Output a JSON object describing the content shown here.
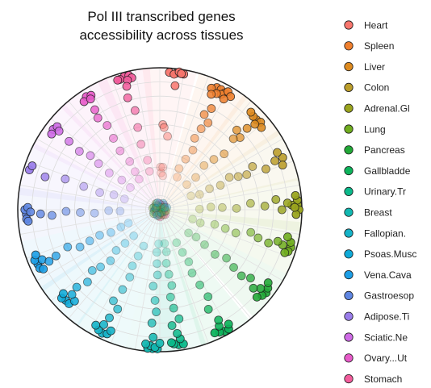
{
  "chart_data": {
    "type": "scatter",
    "subtype": "radial",
    "title_lines": [
      "Pol III transcribed genes",
      "accessibility across tissues"
    ],
    "radial_range": [
      0,
      1
    ],
    "grid": true,
    "legend_position": "right",
    "series": [
      {
        "name": "Heart",
        "color": "#F8766D",
        "angle_deg": 4,
        "points": [
          [
            0.97,
            0
          ],
          [
            0.97,
            3
          ],
          [
            0.97,
            6
          ],
          [
            0.96,
            2
          ],
          [
            0.98,
            4
          ],
          [
            0.97,
            5
          ],
          [
            0.88,
            3
          ],
          [
            0.6,
            -2
          ],
          [
            0.58,
            -1
          ],
          [
            0.52,
            2
          ],
          [
            0.3,
            -3
          ],
          [
            0.3,
            0
          ],
          [
            0.26,
            -2
          ],
          [
            0.24,
            1
          ]
        ]
      },
      {
        "name": "Spleen",
        "color": "#EF7F2E",
        "angle_deg": 27,
        "points": [
          [
            0.95,
            -2
          ],
          [
            0.95,
            0
          ],
          [
            0.94,
            2
          ],
          [
            0.93,
            -4
          ],
          [
            0.92,
            1
          ],
          [
            0.96,
            3
          ],
          [
            0.91,
            -1
          ],
          [
            0.94,
            5
          ],
          [
            0.9,
            3
          ],
          [
            0.89,
            -3
          ],
          [
            0.8,
            0
          ],
          [
            0.74,
            -2
          ],
          [
            0.7,
            2
          ],
          [
            0.64,
            0
          ],
          [
            0.56,
            -1
          ],
          [
            0.48,
            2
          ],
          [
            0.4,
            0
          ],
          [
            0.32,
            -2
          ],
          [
            0.26,
            1
          ]
        ]
      },
      {
        "name": "Liver",
        "color": "#DD8A1F",
        "angle_deg": 47,
        "points": [
          [
            0.93,
            0
          ],
          [
            0.94,
            2
          ],
          [
            0.93,
            -2
          ],
          [
            0.92,
            4
          ],
          [
            0.94,
            -4
          ],
          [
            0.9,
            1
          ],
          [
            0.84,
            0
          ],
          [
            0.78,
            -3
          ],
          [
            0.76,
            1
          ],
          [
            0.72,
            -1
          ],
          [
            0.6,
            2
          ],
          [
            0.52,
            0
          ],
          [
            0.44,
            -2
          ],
          [
            0.34,
            1
          ],
          [
            0.26,
            0
          ]
        ]
      },
      {
        "name": "Colon",
        "color": "#BB9D2B",
        "angle_deg": 67,
        "points": [
          [
            0.94,
            0
          ],
          [
            0.92,
            3
          ],
          [
            0.92,
            -3
          ],
          [
            0.88,
            0
          ],
          [
            0.8,
            2
          ],
          [
            0.72,
            -2
          ],
          [
            0.66,
            1
          ],
          [
            0.6,
            0
          ],
          [
            0.54,
            -2
          ],
          [
            0.46,
            1
          ],
          [
            0.38,
            0
          ],
          [
            0.3,
            2
          ],
          [
            0.24,
            -1
          ]
        ]
      },
      {
        "name": "Adrenal.Gl",
        "color": "#9AA41E",
        "angle_deg": 88,
        "points": [
          [
            0.97,
            0
          ],
          [
            0.97,
            -2
          ],
          [
            0.98,
            2
          ],
          [
            0.96,
            4
          ],
          [
            0.96,
            -4
          ],
          [
            0.93,
            0
          ],
          [
            0.95,
            1
          ],
          [
            0.9,
            -1
          ],
          [
            0.86,
            2
          ],
          [
            0.82,
            -3
          ],
          [
            0.74,
            0
          ],
          [
            0.64,
            -2
          ],
          [
            0.54,
            1
          ],
          [
            0.44,
            0
          ],
          [
            0.36,
            -1
          ],
          [
            0.28,
            1
          ]
        ]
      },
      {
        "name": "Lung",
        "color": "#70AD1F",
        "angle_deg": 106,
        "points": [
          [
            0.96,
            0
          ],
          [
            0.95,
            2
          ],
          [
            0.95,
            -2
          ],
          [
            0.93,
            3
          ],
          [
            0.9,
            0
          ],
          [
            0.92,
            -4
          ],
          [
            0.86,
            -1
          ],
          [
            0.8,
            1
          ],
          [
            0.72,
            0
          ],
          [
            0.66,
            -2
          ],
          [
            0.56,
            1
          ],
          [
            0.48,
            0
          ],
          [
            0.4,
            -1
          ],
          [
            0.3,
            2
          ],
          [
            0.24,
            0
          ]
        ]
      },
      {
        "name": "Pancreas",
        "color": "#22A837",
        "angle_deg": 128,
        "points": [
          [
            0.95,
            0
          ],
          [
            0.94,
            2
          ],
          [
            0.94,
            -2
          ],
          [
            0.92,
            4
          ],
          [
            0.92,
            -4
          ],
          [
            0.9,
            0
          ],
          [
            0.86,
            2
          ],
          [
            0.8,
            -1
          ],
          [
            0.74,
            1
          ],
          [
            0.66,
            0
          ],
          [
            0.58,
            -2
          ],
          [
            0.5,
            1
          ],
          [
            0.4,
            0
          ],
          [
            0.32,
            -1
          ],
          [
            0.26,
            1
          ]
        ]
      },
      {
        "name": "Gallbladde",
        "color": "#0DB35B",
        "angle_deg": 152,
        "points": [
          [
            0.97,
            0
          ],
          [
            0.96,
            2
          ],
          [
            0.97,
            -2
          ],
          [
            0.95,
            4
          ],
          [
            0.94,
            -3
          ],
          [
            0.92,
            1
          ],
          [
            0.88,
            0
          ],
          [
            0.78,
            2
          ],
          [
            0.7,
            -1
          ],
          [
            0.6,
            0
          ],
          [
            0.5,
            1
          ],
          [
            0.42,
            -1
          ],
          [
            0.34,
            0
          ],
          [
            0.26,
            1
          ]
        ]
      },
      {
        "name": "Urinary.Tr",
        "color": "#0BB98A",
        "angle_deg": 172,
        "points": [
          [
            0.96,
            0
          ],
          [
            0.95,
            2
          ],
          [
            0.96,
            -2
          ],
          [
            0.94,
            3
          ],
          [
            0.92,
            -1
          ],
          [
            0.88,
            0
          ],
          [
            0.82,
            2
          ],
          [
            0.78,
            -2
          ],
          [
            0.7,
            0
          ],
          [
            0.62,
            1
          ],
          [
            0.54,
            -1
          ],
          [
            0.46,
            0
          ],
          [
            0.38,
            1
          ],
          [
            0.3,
            -1
          ],
          [
            0.24,
            0
          ]
        ]
      },
      {
        "name": "Breast",
        "color": "#12B8B1",
        "angle_deg": 183,
        "points": [
          [
            0.98,
            0
          ],
          [
            0.98,
            2
          ],
          [
            0.98,
            -2
          ],
          [
            0.96,
            1
          ],
          [
            0.97,
            -1
          ],
          [
            0.95,
            3
          ],
          [
            0.94,
            -3
          ],
          [
            0.9,
            0
          ],
          [
            0.8,
            1
          ],
          [
            0.72,
            -1
          ],
          [
            0.64,
            0
          ],
          [
            0.54,
            2
          ],
          [
            0.46,
            -1
          ],
          [
            0.38,
            0
          ],
          [
            0.3,
            1
          ],
          [
            0.24,
            -1
          ]
        ]
      },
      {
        "name": "Fallopian.",
        "color": "#15B3C8",
        "angle_deg": 205,
        "points": [
          [
            0.96,
            0
          ],
          [
            0.95,
            2
          ],
          [
            0.95,
            -2
          ],
          [
            0.93,
            4
          ],
          [
            0.92,
            -3
          ],
          [
            0.9,
            1
          ],
          [
            0.84,
            0
          ],
          [
            0.76,
            -2
          ],
          [
            0.72,
            2
          ],
          [
            0.62,
            0
          ],
          [
            0.52,
            -1
          ],
          [
            0.44,
            1
          ],
          [
            0.36,
            0
          ],
          [
            0.28,
            -1
          ]
        ]
      },
      {
        "name": "Psoas.Musc",
        "color": "#0FAAD8",
        "angle_deg": 226,
        "points": [
          [
            0.92,
            0
          ],
          [
            0.93,
            2
          ],
          [
            0.92,
            -2
          ],
          [
            0.9,
            3
          ],
          [
            0.88,
            -3
          ],
          [
            0.86,
            0
          ],
          [
            0.8,
            1
          ],
          [
            0.72,
            -1
          ],
          [
            0.64,
            2
          ],
          [
            0.58,
            0
          ],
          [
            0.5,
            -2
          ],
          [
            0.42,
            1
          ],
          [
            0.34,
            0
          ],
          [
            0.26,
            -1
          ]
        ]
      },
      {
        "name": "Vena.Cava",
        "color": "#1C9EE6",
        "angle_deg": 246,
        "points": [
          [
            0.94,
            0
          ],
          [
            0.95,
            2
          ],
          [
            0.94,
            -2
          ],
          [
            0.93,
            4
          ],
          [
            0.92,
            -3
          ],
          [
            0.9,
            1
          ],
          [
            0.86,
            -1
          ],
          [
            0.8,
            0
          ],
          [
            0.7,
            2
          ],
          [
            0.62,
            -1
          ],
          [
            0.54,
            0
          ],
          [
            0.46,
            1
          ],
          [
            0.38,
            -1
          ],
          [
            0.3,
            0
          ],
          [
            0.24,
            1
          ]
        ]
      },
      {
        "name": "Gastroesop",
        "color": "#5F86E2",
        "angle_deg": 268,
        "points": [
          [
            0.94,
            0
          ],
          [
            0.95,
            2
          ],
          [
            0.94,
            -2
          ],
          [
            0.93,
            3
          ],
          [
            0.93,
            -3
          ],
          [
            0.91,
            1
          ],
          [
            0.84,
            0
          ],
          [
            0.76,
            -1
          ],
          [
            0.66,
            1
          ],
          [
            0.56,
            0
          ],
          [
            0.46,
            -1
          ],
          [
            0.36,
            1
          ],
          [
            0.28,
            0
          ]
        ]
      },
      {
        "name": "Adipose.Ti",
        "color": "#9A7DEA",
        "angle_deg": 287,
        "points": [
          [
            0.96,
            0
          ],
          [
            0.95,
            2
          ],
          [
            0.84,
            -1
          ],
          [
            0.7,
            1
          ],
          [
            0.56,
            0
          ],
          [
            0.44,
            -1
          ],
          [
            0.34,
            1
          ],
          [
            0.26,
            0
          ]
        ]
      },
      {
        "name": "Sciatic.Ne",
        "color": "#CF6BE6",
        "angle_deg": 307,
        "points": [
          [
            0.94,
            0
          ],
          [
            0.93,
            2
          ],
          [
            0.93,
            -2
          ],
          [
            0.9,
            1
          ],
          [
            0.8,
            0
          ],
          [
            0.7,
            -1
          ],
          [
            0.62,
            1
          ],
          [
            0.54,
            0
          ],
          [
            0.44,
            -1
          ],
          [
            0.34,
            1
          ],
          [
            0.26,
            0
          ]
        ]
      },
      {
        "name": "Ovary...Ut",
        "color": "#E75AC9",
        "angle_deg": 327,
        "points": [
          [
            0.95,
            0
          ],
          [
            0.94,
            2
          ],
          [
            0.93,
            -2
          ],
          [
            0.92,
            1
          ],
          [
            0.84,
            0
          ],
          [
            0.78,
            -1
          ],
          [
            0.7,
            1
          ],
          [
            0.6,
            0
          ],
          [
            0.5,
            -1
          ],
          [
            0.4,
            1
          ],
          [
            0.32,
            0
          ],
          [
            0.26,
            -1
          ]
        ]
      },
      {
        "name": "Stomach",
        "color": "#F25C9C",
        "angle_deg": 345,
        "points": [
          [
            0.97,
            0
          ],
          [
            0.97,
            2
          ],
          [
            0.96,
            -2
          ],
          [
            0.95,
            3
          ],
          [
            0.96,
            -3
          ],
          [
            0.94,
            1
          ],
          [
            0.9,
            0
          ],
          [
            0.82,
            -1
          ],
          [
            0.72,
            1
          ],
          [
            0.6,
            0
          ],
          [
            0.48,
            -1
          ],
          [
            0.36,
            1
          ],
          [
            0.28,
            0
          ]
        ]
      }
    ]
  }
}
